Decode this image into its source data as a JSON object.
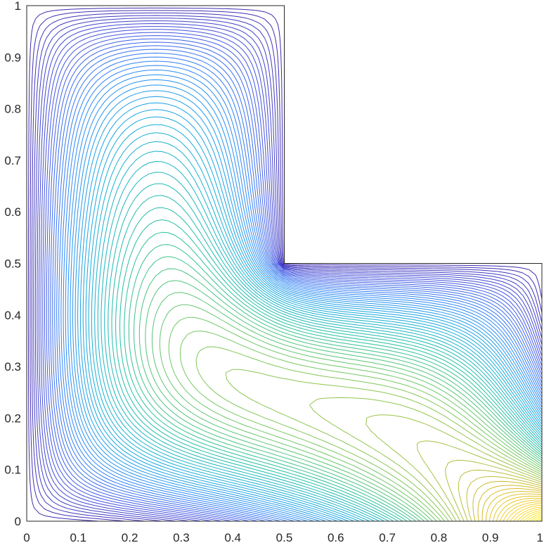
{
  "chart_data": {
    "type": "contour",
    "title": "",
    "xlabel": "",
    "ylabel": "",
    "xlim": [
      0,
      1
    ],
    "ylim": [
      0,
      1
    ],
    "grid": false,
    "legend": "none",
    "domain": "L-shaped region",
    "domain_boundary": [
      [
        0,
        0
      ],
      [
        1,
        0
      ],
      [
        1,
        0.5
      ],
      [
        0.5,
        0.5
      ],
      [
        0.5,
        1
      ],
      [
        0,
        1
      ],
      [
        0,
        0
      ]
    ],
    "colormap": "parula",
    "colormap_stops": [
      "#3e26a8",
      "#4353e0",
      "#2c86f7",
      "#14aadb",
      "#22bfa0",
      "#7bc85b",
      "#d4bb2b",
      "#f9d62d",
      "#f9fb0e"
    ],
    "contour_levels": 75,
    "x_ticks": [
      "0",
      "0.1",
      "0.2",
      "0.3",
      "0.4",
      "0.5",
      "0.6",
      "0.7",
      "0.8",
      "0.9",
      "1"
    ],
    "y_ticks": [
      "0",
      "0.1",
      "0.2",
      "0.3",
      "0.4",
      "0.5",
      "0.6",
      "0.7",
      "0.8",
      "0.9",
      "1"
    ],
    "x_tick_values": [
      0,
      0.1,
      0.2,
      0.3,
      0.4,
      0.5,
      0.6,
      0.7,
      0.8,
      0.9,
      1
    ],
    "y_tick_values": [
      0,
      0.1,
      0.2,
      0.3,
      0.4,
      0.5,
      0.6,
      0.7,
      0.8,
      0.9,
      1
    ]
  }
}
